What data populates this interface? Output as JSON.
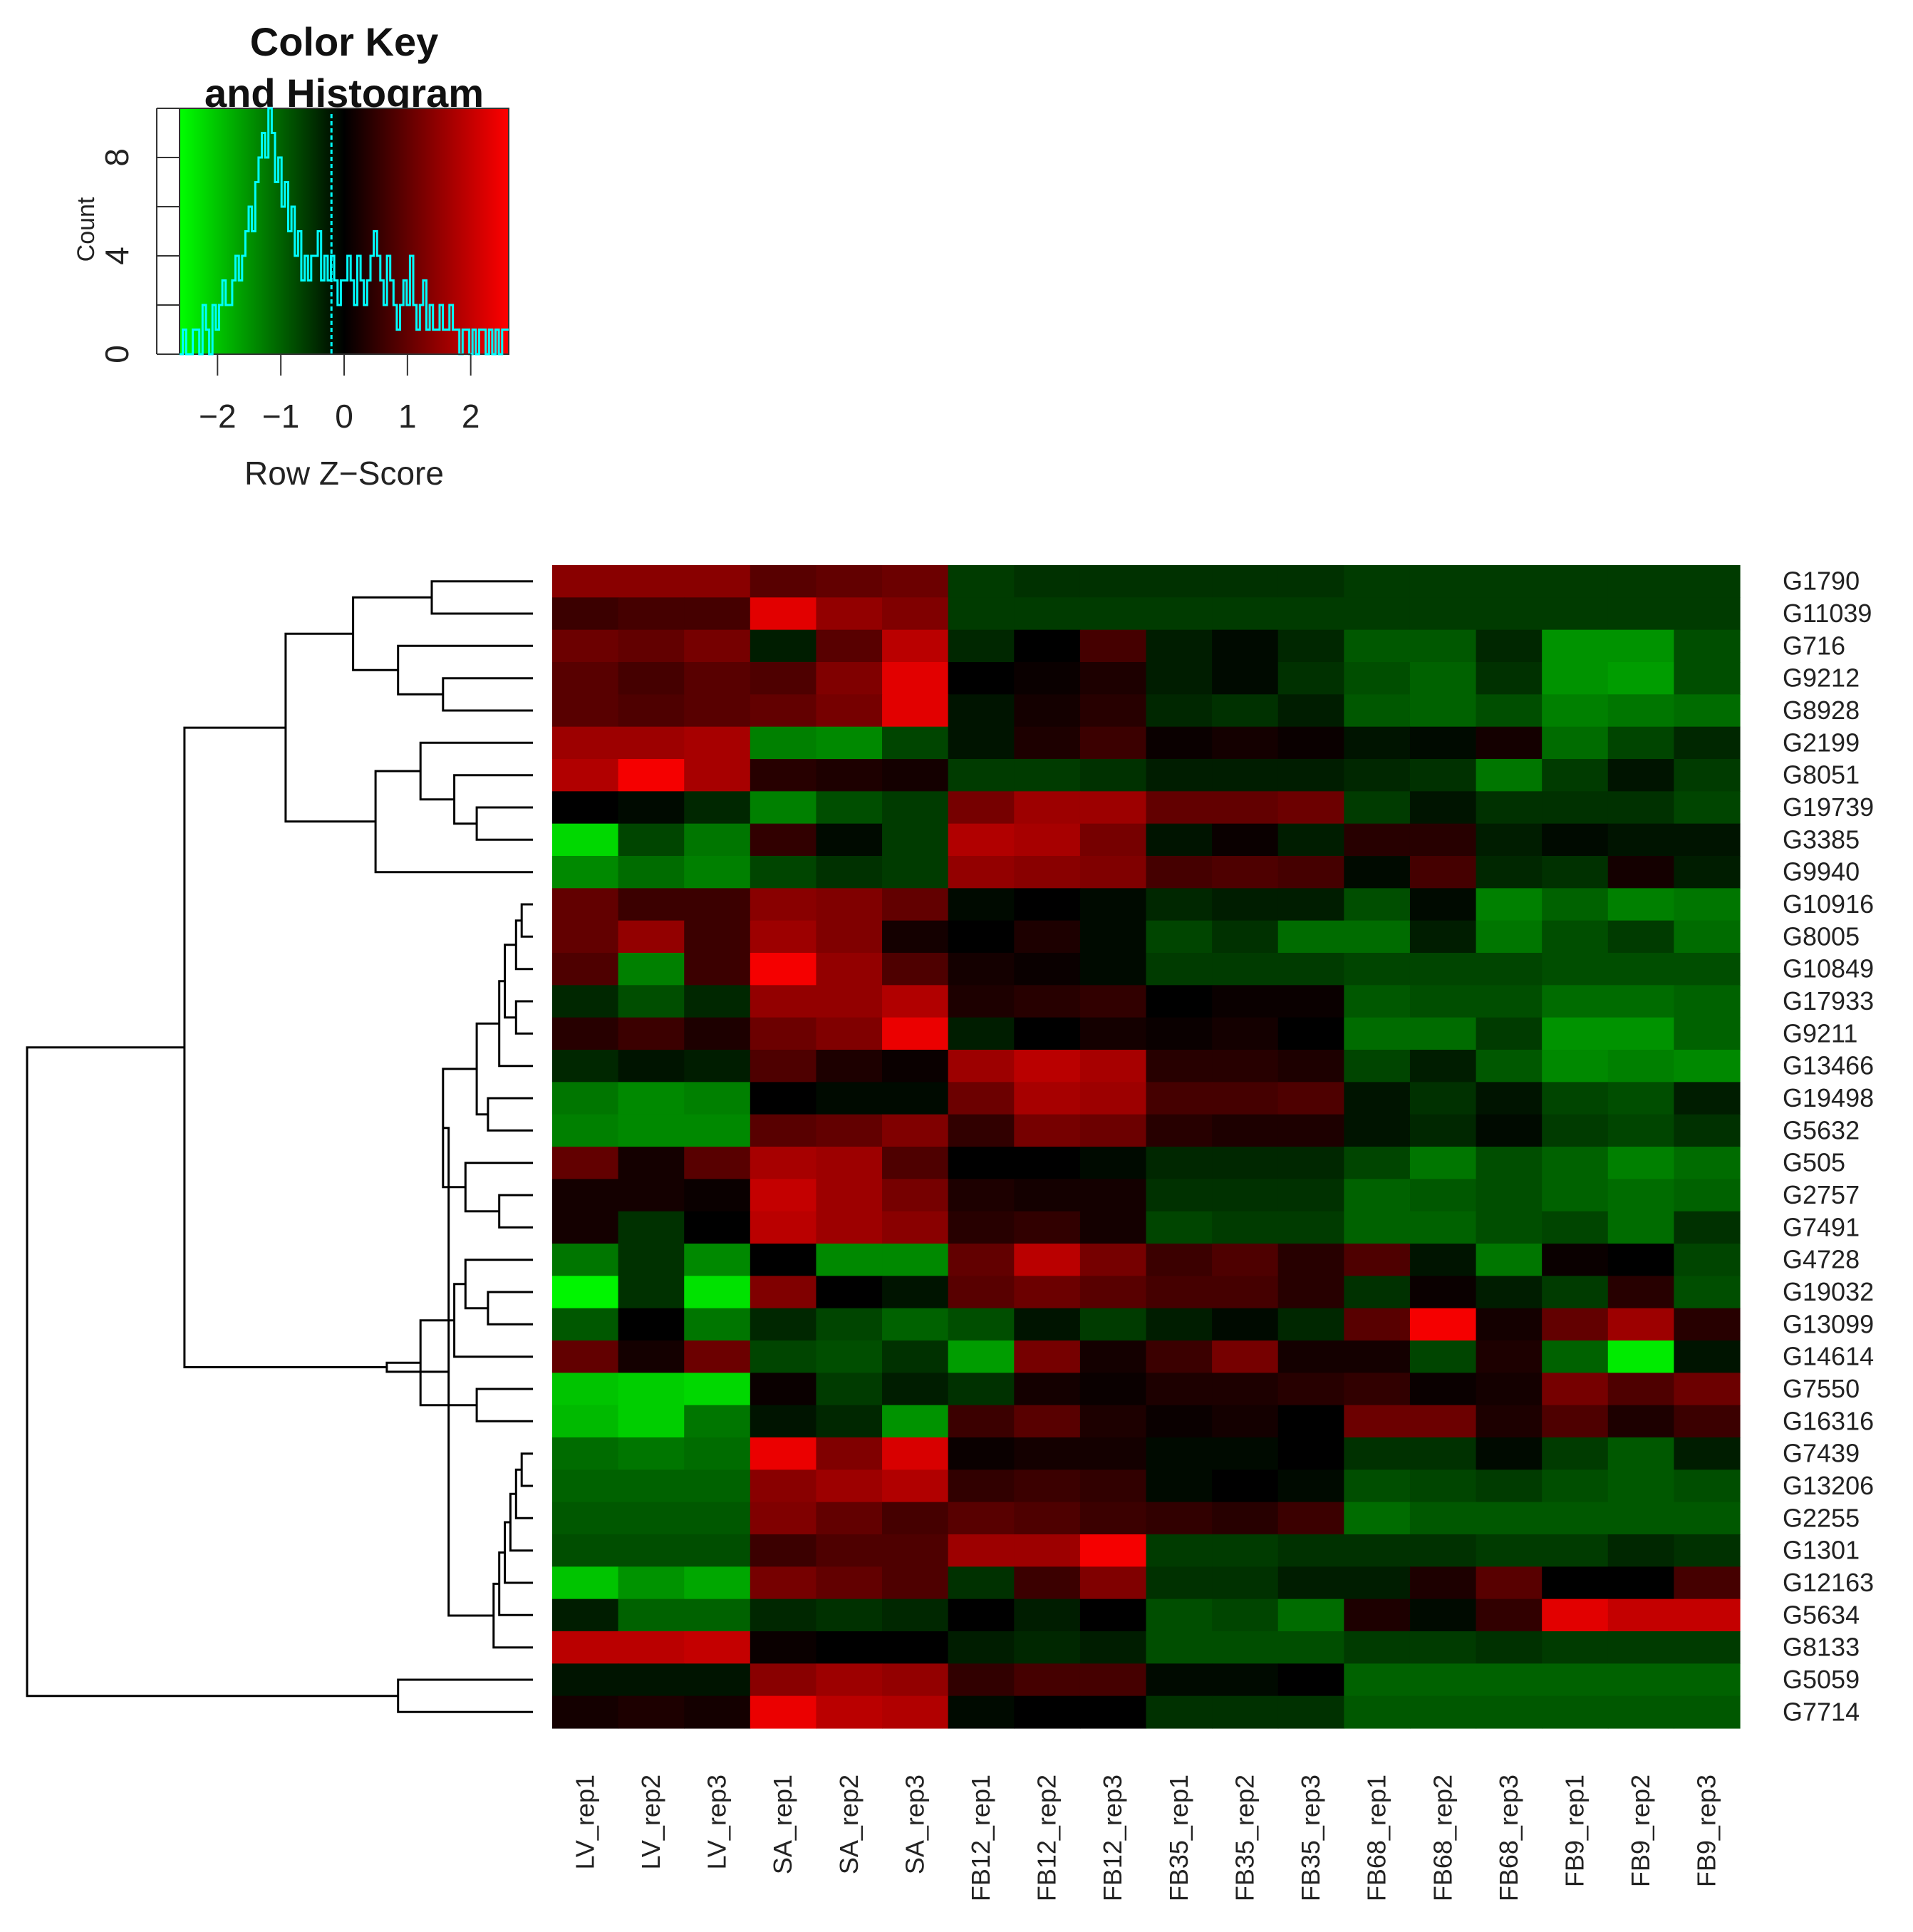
{
  "chart_data": {
    "type": "heatmap",
    "title": "",
    "columns": [
      "LV_rep1",
      "LV_rep2",
      "LV_rep3",
      "SA_rep1",
      "SA_rep2",
      "SA_rep3",
      "FB12_rep1",
      "FB12_rep2",
      "FB12_rep3",
      "FB35_rep1",
      "FB35_rep2",
      "FB35_rep3",
      "FB68_rep1",
      "FB68_rep2",
      "FB68_rep3",
      "FB9_rep1",
      "FB9_rep2",
      "FB9_rep3"
    ],
    "rows": [
      "G1790",
      "G11039",
      "G716",
      "G9212",
      "G8928",
      "G2199",
      "G8051",
      "G19739",
      "G3385",
      "G9940",
      "G10916",
      "G8005",
      "G10849",
      "G17933",
      "G9211",
      "G13466",
      "G19498",
      "G5632",
      "G505",
      "G2757",
      "G7491",
      "G4728",
      "G19032",
      "G13099",
      "G14614",
      "G7550",
      "G16316",
      "G7439",
      "G13206",
      "G2255",
      "G1301",
      "G12163",
      "G5634",
      "G8133",
      "G5059",
      "G7714"
    ],
    "values": [
      [
        1.4,
        1.4,
        1.4,
        0.9,
        1.0,
        1.1,
        -0.6,
        -0.5,
        -0.5,
        -0.5,
        -0.5,
        -0.5,
        -0.6,
        -0.6,
        -0.6,
        -0.6,
        -0.6,
        -0.6
      ],
      [
        0.6,
        0.7,
        0.7,
        2.3,
        1.5,
        1.3,
        -0.6,
        -0.6,
        -0.6,
        -0.6,
        -0.6,
        -0.6,
        -0.6,
        -0.6,
        -0.6,
        -0.6,
        -0.6,
        -0.6
      ],
      [
        1.1,
        1.0,
        1.2,
        -0.3,
        0.9,
        1.9,
        -0.4,
        0.0,
        0.7,
        -0.3,
        -0.1,
        -0.4,
        -0.9,
        -0.9,
        -0.4,
        -1.5,
        -1.5,
        -0.8
      ],
      [
        0.9,
        0.7,
        0.9,
        0.8,
        1.3,
        2.3,
        0.0,
        0.1,
        0.3,
        -0.3,
        -0.1,
        -0.5,
        -0.8,
        -1.0,
        -0.5,
        -1.5,
        -1.6,
        -0.8
      ],
      [
        0.9,
        0.8,
        0.9,
        1.0,
        1.2,
        2.3,
        -0.2,
        0.2,
        0.4,
        -0.4,
        -0.5,
        -0.3,
        -0.9,
        -1.0,
        -0.8,
        -1.3,
        -1.2,
        -1.1
      ],
      [
        1.6,
        1.6,
        1.7,
        -1.3,
        -1.4,
        -0.7,
        -0.2,
        0.3,
        0.6,
        0.1,
        0.2,
        0.1,
        -0.2,
        -0.1,
        0.2,
        -1.1,
        -0.7,
        -0.4
      ],
      [
        1.8,
        2.5,
        1.7,
        0.4,
        0.3,
        0.2,
        -0.6,
        -0.6,
        -0.5,
        -0.3,
        -0.3,
        -0.3,
        -0.4,
        -0.5,
        -1.2,
        -0.6,
        -0.2,
        -0.6
      ],
      [
        0.0,
        -0.1,
        -0.4,
        -1.3,
        -0.8,
        -0.6,
        1.2,
        1.6,
        1.6,
        1.0,
        1.0,
        1.1,
        -0.6,
        -0.2,
        -0.5,
        -0.5,
        -0.5,
        -0.7
      ],
      [
        -2.2,
        -0.7,
        -1.2,
        0.5,
        -0.1,
        -0.6,
        1.8,
        1.7,
        1.2,
        -0.2,
        0.1,
        -0.3,
        0.4,
        0.4,
        -0.3,
        -0.1,
        -0.2,
        -0.2
      ],
      [
        -1.4,
        -1.1,
        -1.3,
        -0.7,
        -0.5,
        -0.6,
        1.5,
        1.4,
        1.3,
        0.7,
        0.8,
        0.7,
        -0.1,
        0.7,
        -0.4,
        -0.5,
        0.2,
        -0.3
      ],
      [
        1.0,
        0.6,
        0.6,
        1.4,
        1.3,
        1.0,
        -0.1,
        0.0,
        -0.1,
        -0.4,
        -0.3,
        -0.3,
        -0.8,
        -0.1,
        -1.3,
        -1.0,
        -1.3,
        -1.2
      ],
      [
        1.0,
        1.5,
        0.6,
        1.6,
        1.3,
        0.2,
        0.0,
        0.3,
        -0.1,
        -0.7,
        -0.5,
        -1.1,
        -1.1,
        -0.3,
        -1.2,
        -0.8,
        -0.6,
        -1.1
      ],
      [
        0.8,
        -1.3,
        0.6,
        2.5,
        1.5,
        0.8,
        0.2,
        0.1,
        -0.1,
        -0.6,
        -0.6,
        -0.6,
        -0.7,
        -0.7,
        -0.7,
        -0.8,
        -0.8,
        -0.8
      ],
      [
        -0.4,
        -0.8,
        -0.4,
        1.5,
        1.5,
        1.8,
        0.3,
        0.4,
        0.5,
        0.0,
        0.1,
        0.1,
        -0.9,
        -0.8,
        -0.8,
        -1.1,
        -1.1,
        -1.0
      ],
      [
        0.4,
        0.6,
        0.3,
        1.1,
        1.3,
        2.4,
        -0.3,
        0.0,
        0.2,
        0.1,
        0.2,
        0.0,
        -1.1,
        -1.1,
        -0.6,
        -1.5,
        -1.5,
        -1.0
      ],
      [
        -0.4,
        -0.2,
        -0.3,
        0.8,
        0.3,
        0.1,
        1.6,
        1.9,
        1.7,
        0.4,
        0.4,
        0.3,
        -0.7,
        -0.3,
        -0.9,
        -1.4,
        -1.3,
        -1.4
      ],
      [
        -1.2,
        -1.4,
        -1.3,
        0.0,
        -0.1,
        -0.1,
        1.1,
        1.7,
        1.6,
        0.7,
        0.7,
        0.8,
        -0.2,
        -0.5,
        -0.2,
        -0.7,
        -0.8,
        -0.3
      ],
      [
        -1.3,
        -1.4,
        -1.4,
        0.9,
        1.0,
        1.3,
        0.5,
        1.2,
        1.1,
        0.4,
        0.3,
        0.3,
        -0.2,
        -0.4,
        -0.1,
        -0.6,
        -0.7,
        -0.5
      ],
      [
        1.0,
        0.2,
        0.9,
        1.7,
        1.6,
        0.8,
        0.0,
        0.0,
        -0.1,
        -0.4,
        -0.4,
        -0.4,
        -0.7,
        -1.2,
        -0.8,
        -1.0,
        -1.3,
        -1.1
      ],
      [
        0.2,
        0.2,
        0.1,
        2.0,
        1.6,
        1.2,
        0.3,
        0.2,
        0.2,
        -0.5,
        -0.5,
        -0.5,
        -1.0,
        -0.9,
        -0.8,
        -1.0,
        -1.1,
        -1.0
      ],
      [
        0.2,
        -0.5,
        0.0,
        1.9,
        1.6,
        1.4,
        0.4,
        0.5,
        0.2,
        -0.7,
        -0.6,
        -0.6,
        -1.0,
        -1.0,
        -0.8,
        -0.7,
        -1.1,
        -0.5
      ],
      [
        -1.2,
        -0.5,
        -1.4,
        0.0,
        -1.4,
        -1.4,
        1.0,
        1.9,
        1.2,
        0.6,
        0.8,
        0.4,
        0.8,
        -0.2,
        -1.2,
        0.1,
        0.0,
        -0.7
      ],
      [
        -2.5,
        -0.5,
        -2.3,
        1.3,
        0.0,
        -0.2,
        0.9,
        1.1,
        0.9,
        0.7,
        0.7,
        0.4,
        -0.5,
        0.1,
        -0.3,
        -0.6,
        0.4,
        -0.8
      ],
      [
        -0.9,
        0.0,
        -1.2,
        -0.4,
        -0.7,
        -1.0,
        -0.8,
        -0.2,
        -0.6,
        -0.3,
        -0.1,
        -0.4,
        0.9,
        2.5,
        0.2,
        1.0,
        1.6,
        0.4
      ],
      [
        1.0,
        0.2,
        1.1,
        -0.7,
        -0.8,
        -0.5,
        -1.6,
        1.2,
        0.2,
        0.6,
        1.2,
        0.2,
        0.2,
        -0.7,
        0.3,
        -1.0,
        -2.4,
        -0.2
      ],
      [
        -2.0,
        -2.1,
        -2.2,
        0.1,
        -0.6,
        -0.3,
        -0.5,
        0.2,
        0.1,
        0.3,
        0.3,
        0.4,
        0.5,
        0.1,
        0.2,
        1.2,
        0.8,
        1.1
      ],
      [
        -1.9,
        -2.1,
        -1.2,
        -0.2,
        -0.4,
        -1.5,
        0.6,
        0.9,
        0.3,
        0.1,
        0.2,
        0.0,
        1.1,
        1.1,
        0.3,
        0.8,
        0.3,
        0.6
      ],
      [
        -1.1,
        -1.2,
        -1.1,
        2.4,
        1.3,
        2.2,
        0.1,
        0.2,
        0.2,
        -0.1,
        -0.1,
        0.0,
        -0.5,
        -0.5,
        -0.1,
        -0.6,
        -0.9,
        -0.3
      ],
      [
        -1.0,
        -1.0,
        -1.0,
        1.4,
        1.6,
        1.8,
        0.5,
        0.6,
        0.5,
        -0.1,
        0.0,
        -0.1,
        -0.8,
        -0.7,
        -0.6,
        -0.8,
        -0.9,
        -0.8
      ],
      [
        -0.9,
        -0.9,
        -0.9,
        1.3,
        1.0,
        0.7,
        0.9,
        0.8,
        0.6,
        0.5,
        0.4,
        0.6,
        -1.1,
        -0.9,
        -0.9,
        -0.9,
        -0.9,
        -0.9
      ],
      [
        -0.8,
        -0.8,
        -0.8,
        0.6,
        0.8,
        0.8,
        1.6,
        1.6,
        2.5,
        -0.6,
        -0.6,
        -0.5,
        -0.5,
        -0.5,
        -0.6,
        -0.6,
        -0.4,
        -0.5
      ],
      [
        -2.0,
        -1.5,
        -1.7,
        1.2,
        1.0,
        0.8,
        -0.5,
        0.6,
        1.3,
        -0.5,
        -0.5,
        -0.3,
        -0.3,
        0.3,
        0.9,
        0.0,
        0.0,
        0.7
      ],
      [
        -0.3,
        -1.0,
        -1.0,
        -0.4,
        -0.5,
        -0.4,
        0.0,
        -0.3,
        0.0,
        -0.8,
        -0.7,
        -1.1,
        0.3,
        -0.1,
        0.5,
        2.3,
        2.0,
        2.0
      ],
      [
        1.9,
        1.9,
        2.0,
        0.1,
        0.0,
        0.0,
        -0.3,
        -0.4,
        -0.3,
        -0.8,
        -0.8,
        -0.8,
        -0.6,
        -0.6,
        -0.5,
        -0.6,
        -0.6,
        -0.6
      ],
      [
        -0.2,
        -0.2,
        -0.2,
        1.4,
        1.6,
        1.5,
        0.5,
        0.7,
        0.7,
        -0.1,
        -0.1,
        0.0,
        -1.0,
        -1.0,
        -1.0,
        -1.0,
        -1.0,
        -1.0
      ],
      [
        0.2,
        0.3,
        0.2,
        2.4,
        1.9,
        1.8,
        -0.1,
        0.0,
        0.0,
        -0.5,
        -0.5,
        -0.5,
        -0.9,
        -0.9,
        -0.9,
        -0.9,
        -0.9,
        -0.9
      ]
    ],
    "color_key": {
      "title": "Color Key",
      "subtitle": "and Histogram",
      "xlabel": "Row Z−Score",
      "ylabel": "Count",
      "x_ticks": [
        "−2",
        "−1",
        "0",
        "1",
        "2"
      ],
      "x_tick_values": [
        -2,
        -1,
        0,
        1,
        2
      ],
      "x_range": [
        -2.6,
        2.6
      ],
      "y_ticks": [
        "0",
        "4",
        "8"
      ],
      "y_tick_values": [
        0,
        4,
        8
      ],
      "y_range": [
        0,
        10
      ],
      "low_color": "#00ff00",
      "mid_color": "#000000",
      "high_color": "#ff0000",
      "histogram_color": "#00ffff",
      "histogram_counts": [
        0,
        1,
        0,
        0,
        1,
        1,
        0,
        2,
        1,
        0,
        2,
        1,
        2,
        3,
        2,
        2,
        3,
        4,
        3,
        4,
        5,
        6,
        5,
        7,
        8,
        9,
        8,
        10,
        9,
        7,
        8,
        6,
        7,
        5,
        6,
        4,
        5,
        3,
        4,
        3,
        4,
        4,
        5,
        3,
        4,
        3,
        4,
        3,
        2,
        3,
        3,
        4,
        3,
        2,
        4,
        3,
        2,
        3,
        4,
        5,
        4,
        3,
        2,
        4,
        3,
        2,
        1,
        2,
        3,
        2,
        4,
        2,
        1,
        2,
        3,
        1,
        2,
        1,
        1,
        2,
        1,
        1,
        2,
        1,
        1,
        0,
        1,
        1,
        0,
        1,
        0,
        1,
        1,
        0,
        1,
        0,
        1,
        0,
        1,
        1
      ]
    },
    "row_dendrogram": {
      "merges": [
        [
          -1,
          -2,
          0.09
        ],
        [
          -4,
          -5,
          0.08
        ],
        [
          -3,
          2,
          0.12
        ],
        [
          1,
          3,
          0.16
        ],
        [
          -8,
          -9,
          0.05
        ],
        [
          -7,
          5,
          0.07
        ],
        [
          -6,
          6,
          0.1
        ],
        [
          -10,
          7,
          0.14
        ],
        [
          4,
          8,
          0.22
        ],
        [
          -11,
          -12,
          0.01
        ],
        [
          -13,
          10,
          0.015
        ],
        [
          -14,
          -15,
          0.015
        ],
        [
          11,
          12,
          0.025
        ],
        [
          -16,
          13,
          0.03
        ],
        [
          -17,
          -18,
          0.04
        ],
        [
          14,
          15,
          0.05
        ],
        [
          -20,
          -21,
          0.03
        ],
        [
          -19,
          17,
          0.06
        ],
        [
          16,
          18,
          0.08
        ],
        [
          -23,
          -24,
          0.04
        ],
        [
          -22,
          20,
          0.06
        ],
        [
          -25,
          21,
          0.07
        ],
        [
          -26,
          -27,
          0.05
        ],
        [
          22,
          23,
          0.1
        ],
        [
          -28,
          -29,
          0.01
        ],
        [
          25,
          -30,
          0.015
        ],
        [
          26,
          -31,
          0.02
        ],
        [
          27,
          -32,
          0.025
        ],
        [
          28,
          -33,
          0.03
        ],
        [
          29,
          -34,
          0.035
        ],
        [
          19,
          30,
          0.075
        ],
        [
          24,
          31,
          0.13
        ],
        [
          9,
          32,
          0.31
        ],
        [
          -35,
          -36,
          0.12
        ],
        [
          33,
          34,
          0.45
        ]
      ],
      "max_height": 0.45
    }
  }
}
